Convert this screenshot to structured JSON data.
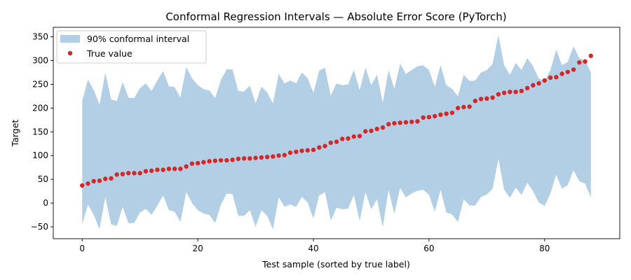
{
  "chart_data": {
    "type": "area",
    "title": "Conformal Regression Intervals — Absolute Error Score (PyTorch)",
    "xlabel": "Test sample (sorted by true label)",
    "ylabel": "Target",
    "xlim": [
      -5,
      93
    ],
    "ylim": [
      -75,
      370
    ],
    "xticks": [
      0,
      20,
      40,
      60,
      80
    ],
    "yticks": [
      -50,
      0,
      50,
      100,
      150,
      200,
      250,
      300,
      350
    ],
    "grid": false,
    "legend_position": "top-left",
    "colors": {
      "band": "#b3cfe5",
      "points": "#d62728"
    },
    "x": [
      0,
      1,
      2,
      3,
      4,
      5,
      6,
      7,
      8,
      9,
      10,
      11,
      12,
      13,
      14,
      15,
      16,
      17,
      18,
      19,
      20,
      21,
      22,
      23,
      24,
      25,
      26,
      27,
      28,
      29,
      30,
      31,
      32,
      33,
      34,
      35,
      36,
      37,
      38,
      39,
      40,
      41,
      42,
      43,
      44,
      45,
      46,
      47,
      48,
      49,
      50,
      51,
      52,
      53,
      54,
      55,
      56,
      57,
      58,
      59,
      60,
      61,
      62,
      63,
      64,
      65,
      66,
      67,
      68,
      69,
      70,
      71,
      72,
      73,
      74,
      75,
      76,
      77,
      78,
      79,
      80,
      81,
      82,
      83,
      84,
      85,
      86,
      87,
      88
    ],
    "series": [
      {
        "name": "90% conformal interval",
        "kind": "band",
        "upper": [
          215,
          260,
          238,
          207,
          275,
          218,
          215,
          255,
          222,
          221,
          242,
          252,
          236,
          258,
          278,
          246,
          244,
          222,
          286,
          263,
          248,
          240,
          237,
          221,
          259,
          282,
          281,
          236,
          235,
          247,
          210,
          245,
          233,
          210,
          272,
          252,
          258,
          252,
          275,
          263,
          232,
          279,
          285,
          226,
          252,
          248,
          250,
          280,
          238,
          285,
          248,
          270,
          211,
          280,
          240,
          293,
          272,
          280,
          288,
          290,
          280,
          245,
          290,
          248,
          240,
          225,
          270,
          257,
          258,
          275,
          280,
          293,
          354,
          290,
          270,
          295,
          280,
          305,
          288,
          262,
          258,
          280,
          323,
          290,
          297,
          330,
          305,
          300,
          275
        ],
        "lower": [
          -45,
          -3,
          -25,
          -55,
          13,
          -45,
          -48,
          -8,
          -42,
          -42,
          -20,
          -12,
          -25,
          -5,
          16,
          -15,
          -18,
          -40,
          23,
          0,
          -15,
          -22,
          -25,
          -42,
          -3,
          20,
          19,
          -27,
          -27,
          -15,
          -50,
          -15,
          -27,
          -55,
          12,
          -8,
          -3,
          -8,
          13,
          1,
          -32,
          16,
          23,
          -37,
          -10,
          -13,
          -12,
          17,
          -38,
          23,
          -13,
          8,
          -51,
          28,
          -23,
          32,
          12,
          20,
          26,
          28,
          17,
          -18,
          28,
          -20,
          -24,
          -40,
          8,
          -5,
          -5,
          13,
          18,
          30,
          93,
          28,
          11,
          33,
          17,
          43,
          25,
          1,
          -6,
          20,
          60,
          30,
          38,
          69,
          46,
          41,
          12
        ]
      },
      {
        "name": "True value",
        "kind": "scatter",
        "values": [
          37,
          41,
          46,
          47,
          51,
          52,
          60,
          61,
          63,
          63,
          63,
          67,
          68,
          70,
          70,
          72,
          72,
          72,
          77,
          83,
          84,
          86,
          88,
          89,
          90,
          90,
          91,
          93,
          94,
          94,
          95,
          96,
          97,
          98,
          100,
          101,
          106,
          108,
          110,
          111,
          112,
          117,
          120,
          127,
          129,
          135,
          136,
          140,
          141,
          151,
          152,
          156,
          159,
          166,
          168,
          169,
          170,
          171,
          172,
          180,
          181,
          183,
          186,
          188,
          190,
          200,
          202,
          203,
          215,
          219,
          220,
          222,
          229,
          232,
          234,
          234,
          236,
          242,
          248,
          252,
          258,
          264,
          265,
          272,
          276,
          281,
          296,
          298,
          310
        ]
      }
    ]
  }
}
